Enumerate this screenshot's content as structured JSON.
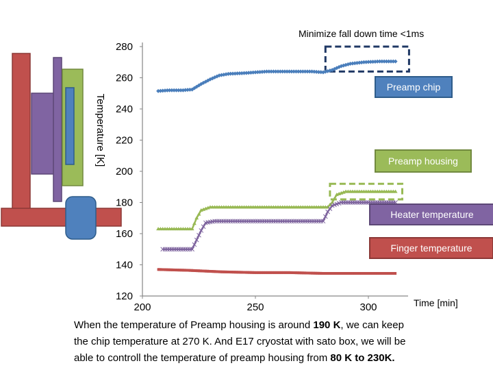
{
  "chart_data": {
    "type": "scatter",
    "title": "Minimize fall down time <1ms",
    "xlabel": "Time [min]",
    "ylabel": "Temperature [K]",
    "xlim": [
      200,
      320
    ],
    "ylim": [
      120,
      280
    ],
    "xticks": [
      "200",
      "250",
      "300"
    ],
    "yticks": [
      "280",
      "260",
      "240",
      "220",
      "200",
      "180",
      "160",
      "140",
      "120"
    ],
    "grid": false,
    "series": [
      {
        "name": "Preamp chip",
        "color": "#4A7EBB",
        "marker": "diamond",
        "points": [
          [
            207,
            251.5
          ],
          [
            212,
            252
          ],
          [
            218,
            252
          ],
          [
            222,
            252.5
          ],
          [
            226,
            256
          ],
          [
            230,
            259
          ],
          [
            234,
            261.5
          ],
          [
            238,
            262.5
          ],
          [
            245,
            263
          ],
          [
            255,
            264
          ],
          [
            265,
            264
          ],
          [
            275,
            264
          ],
          [
            280,
            263.5
          ],
          [
            284,
            265
          ],
          [
            288,
            267.5
          ],
          [
            292,
            269
          ],
          [
            298,
            270
          ],
          [
            305,
            270.5
          ],
          [
            312,
            270.5
          ]
        ]
      },
      {
        "name": "Preamp housing",
        "color": "#98B954",
        "marker": "triangle",
        "points": [
          [
            207,
            163
          ],
          [
            215,
            163
          ],
          [
            222,
            163
          ],
          [
            224,
            170
          ],
          [
            226,
            175
          ],
          [
            230,
            177
          ],
          [
            240,
            177
          ],
          [
            255,
            177
          ],
          [
            270,
            177
          ],
          [
            282,
            177
          ],
          [
            284,
            180
          ],
          [
            286,
            185
          ],
          [
            290,
            187
          ],
          [
            300,
            187
          ],
          [
            312,
            187
          ]
        ]
      },
      {
        "name": "Heater temperature",
        "color": "#7E649E",
        "marker": "x",
        "points": [
          [
            209,
            150
          ],
          [
            218,
            150
          ],
          [
            222,
            150
          ],
          [
            224,
            156
          ],
          [
            226,
            162
          ],
          [
            228,
            167
          ],
          [
            232,
            168
          ],
          [
            245,
            168
          ],
          [
            260,
            168
          ],
          [
            275,
            168
          ],
          [
            280,
            168
          ],
          [
            282,
            174
          ],
          [
            284,
            178
          ],
          [
            288,
            180
          ],
          [
            300,
            180
          ],
          [
            312,
            180
          ]
        ]
      },
      {
        "name": "Finger temperature",
        "color": "#C0504D",
        "marker": "dash",
        "points": [
          [
            207,
            137
          ],
          [
            220,
            136.5
          ],
          [
            235,
            135.5
          ],
          [
            250,
            135
          ],
          [
            265,
            135
          ],
          [
            280,
            134.5
          ],
          [
            295,
            134.5
          ],
          [
            312,
            134.5
          ]
        ]
      }
    ],
    "annotation_boxes": [
      {
        "series": "Preamp chip",
        "x": [
          281,
          318
        ],
        "y": [
          264,
          280
        ],
        "color": "#1F3864"
      },
      {
        "series": "Preamp housing",
        "x": [
          283,
          315
        ],
        "y": [
          182,
          192
        ],
        "color": "#98B954"
      }
    ],
    "legend_labels": [
      {
        "text": "Preamp chip",
        "bg": "#4F81BD",
        "border": "#2E5C8A"
      },
      {
        "text": "Preamp housing",
        "bg": "#9BBB59",
        "border": "#71893F"
      },
      {
        "text": "Heater temperature",
        "bg": "#8064A2",
        "border": "#5C4776"
      },
      {
        "text": "Finger temperature",
        "bg": "#C0504D",
        "border": "#8C3836"
      }
    ]
  },
  "caption": {
    "line1_pre": "When the temperature of Preamp housing  is around ",
    "line1_bold": "190 K",
    "line1_post": ", we can keep",
    "line2": "the chip temperature at 270 K. And E17 cryostat with sato box, we will be",
    "line3_pre": "able to controll the temperature of preamp housing from ",
    "line3_bold": "80 K to 230K."
  },
  "diagram_colors": {
    "finger": "#C0504D",
    "heater": "#8064A2",
    "housing": "#9BBB59",
    "chip": "#4F81BD"
  }
}
